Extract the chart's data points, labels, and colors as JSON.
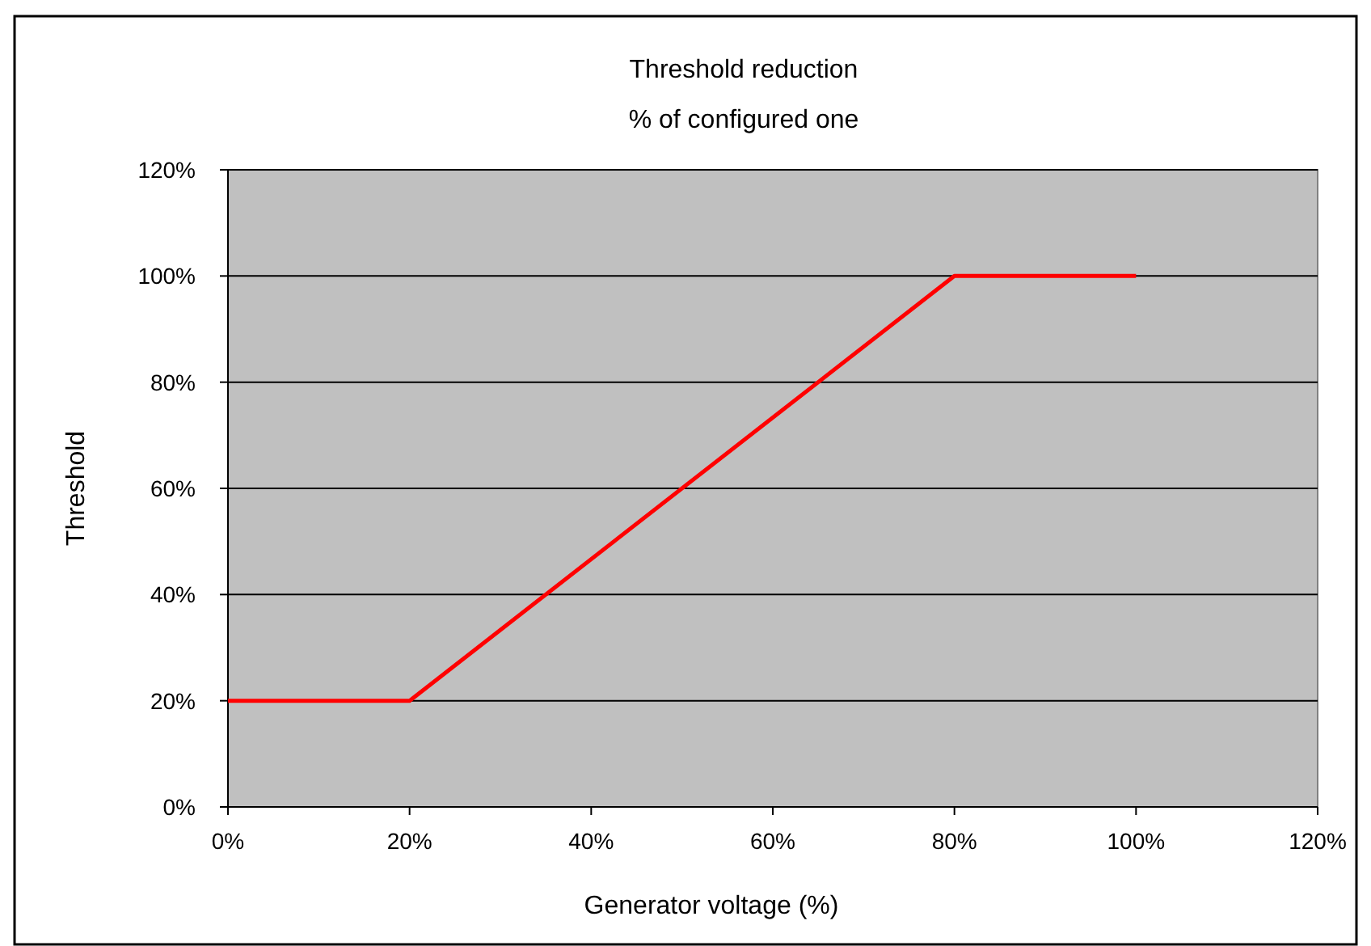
{
  "chart_data": {
    "type": "line",
    "title": "Threshold reduction",
    "subtitle": "% of configured one",
    "xlabel": "Generator voltage (%)",
    "ylabel": "Threshold",
    "x": [
      0,
      20,
      80,
      100
    ],
    "series": [
      {
        "color": "#ff0000",
        "values": [
          20,
          20,
          100,
          100
        ]
      }
    ],
    "xlim": [
      0,
      120
    ],
    "ylim": [
      0,
      120
    ],
    "xticks": [
      {
        "value": 0,
        "label": "0%"
      },
      {
        "value": 20,
        "label": "20%"
      },
      {
        "value": 40,
        "label": "40%"
      },
      {
        "value": 60,
        "label": "60%"
      },
      {
        "value": 80,
        "label": "80%"
      },
      {
        "value": 100,
        "label": "100%"
      },
      {
        "value": 120,
        "label": "120%"
      }
    ],
    "yticks": [
      {
        "value": 0,
        "label": "0%"
      },
      {
        "value": 20,
        "label": "20%"
      },
      {
        "value": 40,
        "label": "40%"
      },
      {
        "value": 60,
        "label": "60%"
      },
      {
        "value": 80,
        "label": "80%"
      },
      {
        "value": 100,
        "label": "100%"
      },
      {
        "value": 120,
        "label": "120%"
      }
    ],
    "grid": "y",
    "marker": "none",
    "line_style": "solid"
  }
}
